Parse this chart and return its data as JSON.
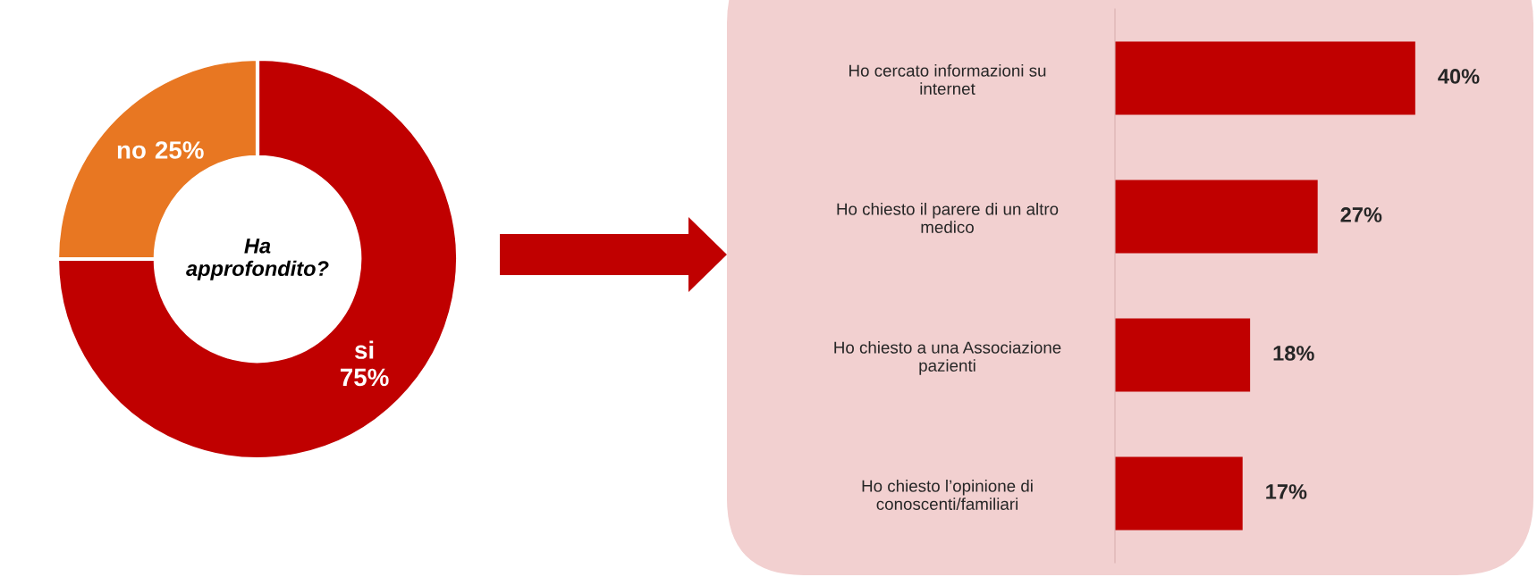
{
  "chart_data": [
    {
      "type": "donut",
      "categories": [
        "si",
        "no"
      ],
      "values": [
        75,
        25
      ],
      "colors": [
        "#c00000",
        "#e87722"
      ],
      "value_labels": [
        "75%",
        "25%"
      ],
      "annotations": [
        "Ha\napprofondito?"
      ]
    },
    {
      "type": "bar",
      "orientation": "horizontal",
      "categories": [
        "Ho cercato informazioni su\ninternet",
        "Ho chiesto il parere di un altro\nmedico",
        "Ho chiesto a una Associazione\npazienti",
        "Ho chiesto l’opinione di\nconoscenti/familiari"
      ],
      "values": [
        40,
        27,
        18,
        17
      ],
      "color": "#c00000",
      "value_labels": [
        "40%",
        "27%",
        "18%",
        "17%"
      ],
      "tick_labels": "y"
    }
  ]
}
